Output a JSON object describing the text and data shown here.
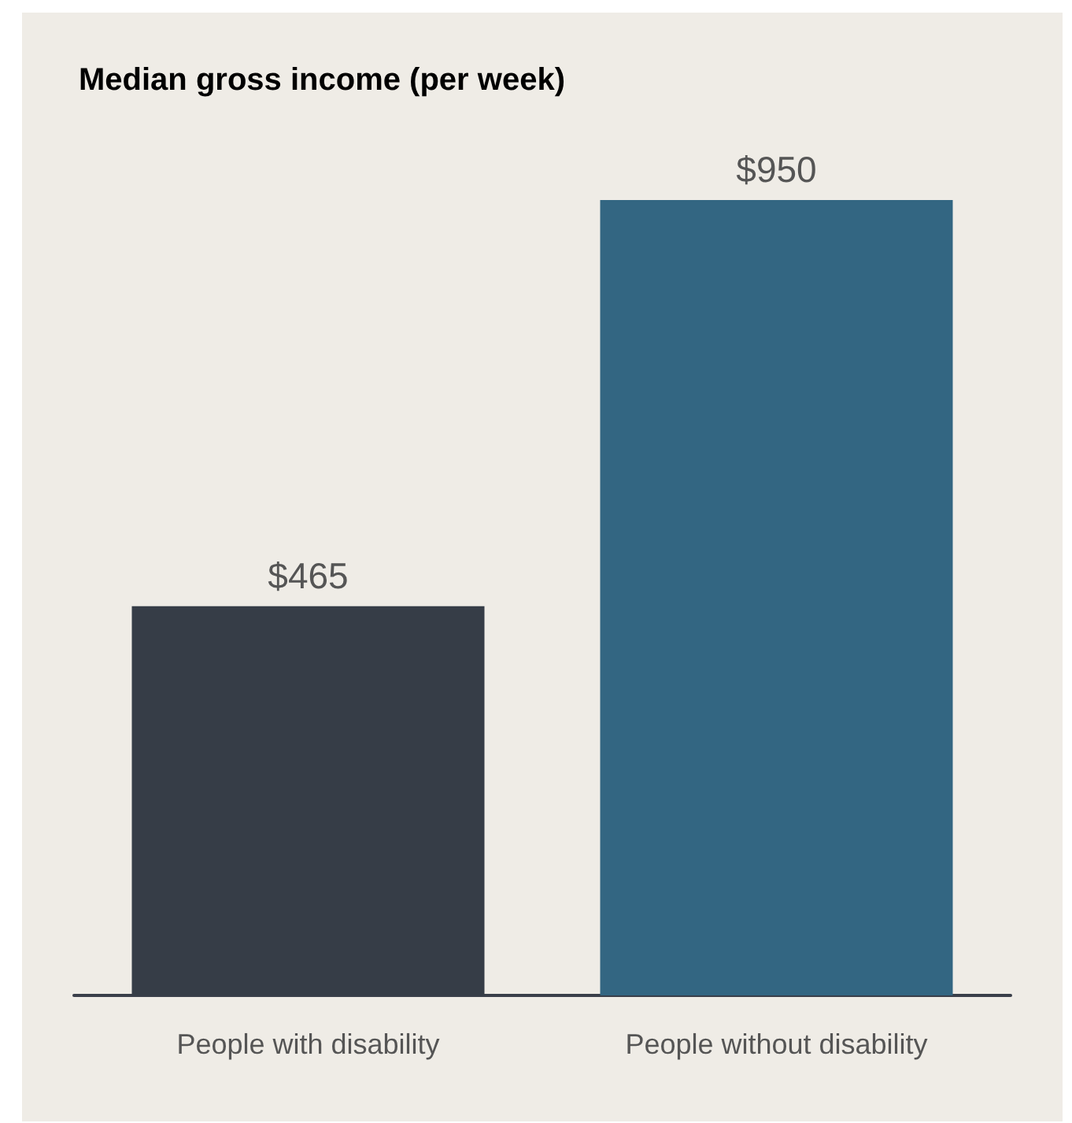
{
  "chart_data": {
    "type": "bar",
    "title": "Median gross income (per week)",
    "categories": [
      "People with disability",
      "People without disability"
    ],
    "values": [
      465,
      950
    ],
    "colors": [
      "#363d47",
      "#336682"
    ],
    "value_labels": [
      "$465",
      "$950"
    ]
  }
}
